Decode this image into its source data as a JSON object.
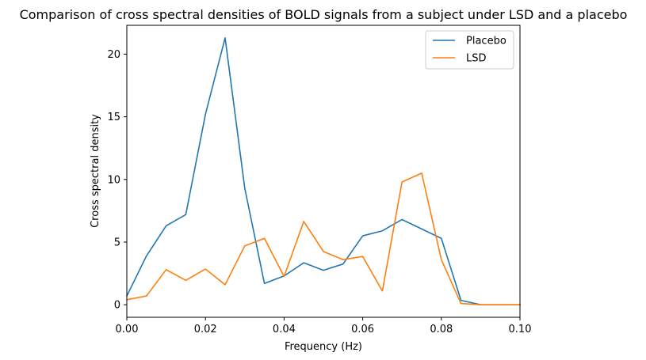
{
  "chart_data": {
    "type": "line",
    "title": "Comparison of cross spectral densities of BOLD signals from a subject under LSD and a placebo",
    "xlabel": "Frequency (Hz)",
    "ylabel": "Cross spectral density",
    "xlim": [
      0,
      0.1
    ],
    "ylim": [
      -1.0,
      22.3
    ],
    "xticks": [
      0.0,
      0.02,
      0.04,
      0.06,
      0.08,
      0.1
    ],
    "xtick_labels": [
      "0.00",
      "0.02",
      "0.04",
      "0.06",
      "0.08",
      "0.10"
    ],
    "yticks": [
      0,
      5,
      10,
      15,
      20
    ],
    "ytick_labels": [
      "0",
      "5",
      "10",
      "15",
      "20"
    ],
    "grid": false,
    "legend_position": "top-right",
    "x": [
      0.0,
      0.005,
      0.01,
      0.015,
      0.02,
      0.025,
      0.03,
      0.035,
      0.04,
      0.045,
      0.05,
      0.055,
      0.06,
      0.065,
      0.07,
      0.075,
      0.08,
      0.085,
      0.09,
      0.095,
      0.1
    ],
    "series": [
      {
        "name": "Placebo",
        "color": "#1f77b4",
        "values": [
          0.7,
          3.9,
          6.3,
          7.2,
          15.2,
          21.3,
          9.3,
          1.7,
          2.3,
          3.35,
          2.75,
          3.25,
          5.5,
          5.9,
          6.8,
          6.05,
          5.3,
          0.35,
          0.0,
          0.0,
          0.0
        ]
      },
      {
        "name": "LSD",
        "color": "#ff7f0e",
        "values": [
          0.4,
          0.7,
          2.8,
          1.95,
          2.85,
          1.6,
          4.7,
          5.3,
          2.25,
          6.65,
          4.25,
          3.6,
          3.85,
          1.1,
          9.8,
          10.5,
          3.6,
          0.1,
          0.0,
          0.0,
          0.0
        ]
      }
    ]
  }
}
